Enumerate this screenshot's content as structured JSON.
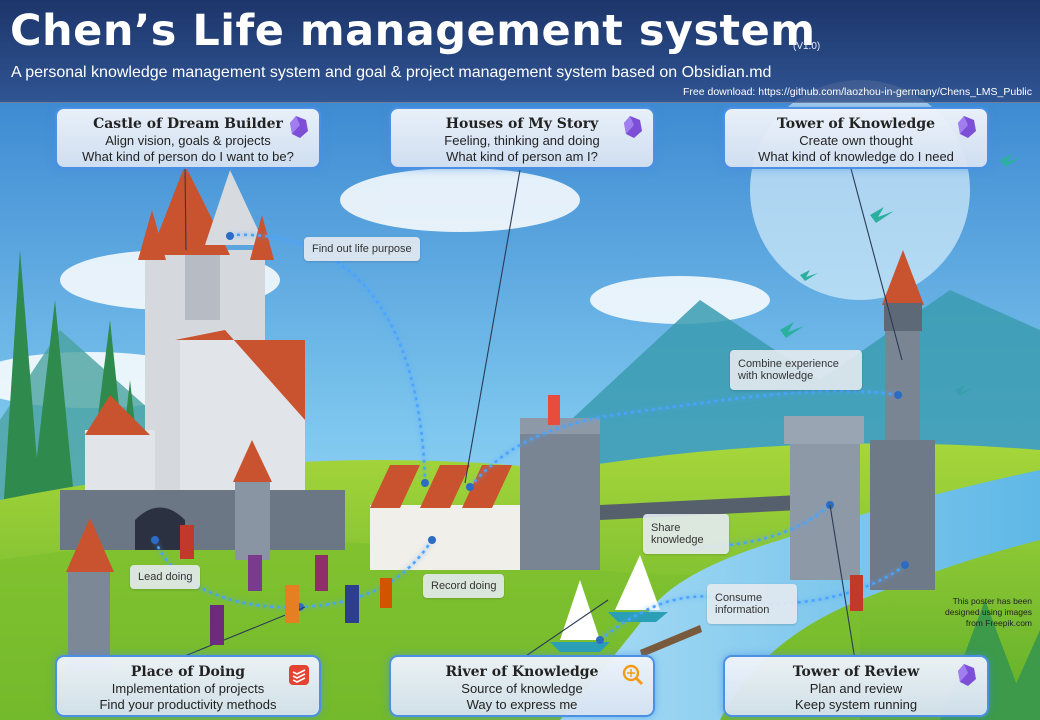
{
  "header": {
    "title": "Chen’s Life management system",
    "version": "(V1.0)",
    "subtitle": "A personal knowledge management system and goal & project management system based on Obsidian.md",
    "download": "Free download: https://github.com/laozhou-in-germany/Chens_LMS_Public"
  },
  "cards": {
    "castle": {
      "title": "Castle of Dream Builder",
      "line1": "Align vision, goals & projects",
      "line2": "What kind of person do I want to be?",
      "icon": "obsidian-icon"
    },
    "houses": {
      "title": "Houses of My Story",
      "line1": "Feeling, thinking and doing",
      "line2": "What kind of person am I?",
      "icon": "obsidian-icon"
    },
    "knowledge": {
      "title": "Tower of Knowledge",
      "line1": "Create own thought",
      "line2": "What kind of knowledge do I need",
      "icon": "obsidian-icon"
    },
    "doing": {
      "title": "Place of Doing",
      "line1": "Implementation of projects",
      "line2": "Find your productivity methods",
      "icon": "todoist-icon"
    },
    "river": {
      "title": "River of Knowledge",
      "line1": "Source of knowledge",
      "line2": "Way to express me",
      "icon": "feed-search-icon"
    },
    "review": {
      "title": "Tower of Review",
      "line1": "Plan and review",
      "line2": "Keep system running",
      "icon": "obsidian-icon"
    }
  },
  "flows": {
    "life_purpose": "Find out life purpose",
    "combine_1": "Combine experience",
    "combine_2": "with knowledge",
    "share_1": "Share",
    "share_2": "knowledge",
    "consume_1": "Consume",
    "consume_2": "information",
    "lead": "Lead doing",
    "record": "Record doing"
  },
  "credit": {
    "line1": "This poster has been",
    "line2": "designed using images",
    "line3": "from Freepik.com"
  },
  "colors": {
    "header_bg": "#2c4884",
    "card_border": "#4b90e2",
    "flow_line": "#4aa3ff",
    "roof": "#c9532f",
    "obsidian": "#7c4fd6",
    "todoist": "#e44332",
    "feed": "#f39c12"
  }
}
